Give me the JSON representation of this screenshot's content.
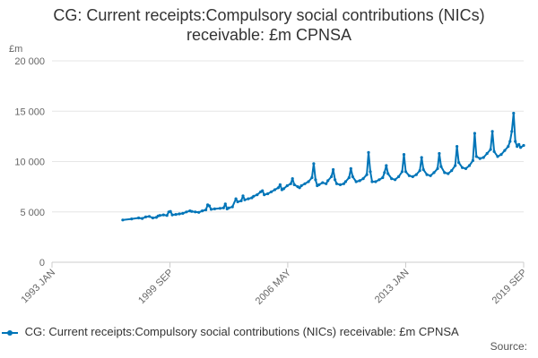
{
  "chart_data": {
    "type": "line",
    "title_line1": "CG: Current receipts:Compulsory social contributions (NICs)",
    "title_line2": "receivable: £m CPNSA",
    "ylabel": "£m",
    "ylim": [
      0,
      20000
    ],
    "yticks": [
      {
        "value": 0,
        "label": "0"
      },
      {
        "value": 5000,
        "label": "5 000"
      },
      {
        "value": 10000,
        "label": "10 000"
      },
      {
        "value": 15000,
        "label": "15 000"
      },
      {
        "value": 20000,
        "label": "20 000"
      }
    ],
    "xlim": [
      1993.0,
      2019.67
    ],
    "xticks": [
      {
        "value": 1993.0,
        "label": "1993 JAN"
      },
      {
        "value": 1999.67,
        "label": "1999 SEP"
      },
      {
        "value": 2006.33,
        "label": "2006 MAY"
      },
      {
        "value": 2013.0,
        "label": "2013 JAN"
      },
      {
        "value": 2019.67,
        "label": "2019 SEP"
      }
    ],
    "series": [
      {
        "name": "CG: Current receipts:Compulsory social contributions (NICs) receivable: £m CPNSA",
        "color": "#0075b8",
        "points": [
          [
            1997.0,
            4200
          ],
          [
            1997.5,
            4300
          ],
          [
            1997.9,
            4400
          ],
          [
            1998.1,
            4350
          ],
          [
            1998.3,
            4500
          ],
          [
            1998.5,
            4550
          ],
          [
            1998.7,
            4400
          ],
          [
            1998.9,
            4450
          ],
          [
            1999.0,
            4600
          ],
          [
            1999.1,
            4650
          ],
          [
            1999.3,
            4700
          ],
          [
            1999.5,
            4650
          ],
          [
            1999.6,
            5000
          ],
          [
            1999.7,
            5050
          ],
          [
            1999.8,
            4700
          ],
          [
            2000.0,
            4750
          ],
          [
            2000.2,
            4800
          ],
          [
            2000.4,
            4850
          ],
          [
            2000.6,
            5000
          ],
          [
            2000.8,
            5100
          ],
          [
            2000.9,
            5050
          ],
          [
            2001.1,
            5000
          ],
          [
            2001.3,
            4950
          ],
          [
            2001.5,
            5100
          ],
          [
            2001.7,
            5200
          ],
          [
            2001.8,
            5700
          ],
          [
            2001.9,
            5600
          ],
          [
            2002.0,
            5250
          ],
          [
            2002.2,
            5300
          ],
          [
            2002.5,
            5350
          ],
          [
            2002.7,
            5400
          ],
          [
            2002.8,
            5800
          ],
          [
            2002.9,
            5300
          ],
          [
            2003.0,
            5400
          ],
          [
            2003.2,
            5500
          ],
          [
            2003.4,
            6300
          ],
          [
            2003.5,
            6000
          ],
          [
            2003.7,
            6100
          ],
          [
            2003.8,
            6600
          ],
          [
            2003.9,
            6200
          ],
          [
            2004.1,
            6300
          ],
          [
            2004.3,
            6400
          ],
          [
            2004.4,
            6550
          ],
          [
            2004.6,
            6700
          ],
          [
            2004.8,
            7000
          ],
          [
            2004.9,
            7100
          ],
          [
            2005.0,
            6700
          ],
          [
            2005.2,
            6800
          ],
          [
            2005.4,
            7000
          ],
          [
            2005.6,
            7200
          ],
          [
            2005.8,
            7400
          ],
          [
            2005.9,
            7700
          ],
          [
            2006.0,
            7200
          ],
          [
            2006.1,
            7300
          ],
          [
            2006.3,
            7600
          ],
          [
            2006.5,
            7800
          ],
          [
            2006.6,
            8300
          ],
          [
            2006.7,
            7700
          ],
          [
            2006.9,
            7500
          ],
          [
            2007.0,
            7400
          ],
          [
            2007.1,
            7600
          ],
          [
            2007.3,
            7800
          ],
          [
            2007.5,
            8000
          ],
          [
            2007.7,
            8400
          ],
          [
            2007.8,
            9800
          ],
          [
            2007.9,
            8200
          ],
          [
            2008.0,
            7600
          ],
          [
            2008.1,
            7700
          ],
          [
            2008.3,
            7900
          ],
          [
            2008.5,
            7800
          ],
          [
            2008.6,
            8100
          ],
          [
            2008.8,
            8500
          ],
          [
            2008.9,
            9200
          ],
          [
            2009.0,
            8200
          ],
          [
            2009.1,
            7800
          ],
          [
            2009.3,
            7700
          ],
          [
            2009.5,
            7800
          ],
          [
            2009.6,
            8000
          ],
          [
            2009.8,
            8400
          ],
          [
            2009.9,
            9300
          ],
          [
            2010.0,
            8500
          ],
          [
            2010.2,
            8000
          ],
          [
            2010.4,
            8100
          ],
          [
            2010.6,
            8300
          ],
          [
            2010.8,
            8700
          ],
          [
            2010.9,
            10900
          ],
          [
            2011.0,
            9000
          ],
          [
            2011.1,
            8000
          ],
          [
            2011.3,
            8000
          ],
          [
            2011.5,
            8200
          ],
          [
            2011.7,
            8400
          ],
          [
            2011.8,
            8900
          ],
          [
            2011.9,
            9600
          ],
          [
            2012.0,
            8800
          ],
          [
            2012.2,
            8300
          ],
          [
            2012.4,
            8200
          ],
          [
            2012.6,
            8500
          ],
          [
            2012.8,
            9000
          ],
          [
            2012.9,
            10700
          ],
          [
            2013.0,
            9000
          ],
          [
            2013.2,
            8600
          ],
          [
            2013.4,
            8500
          ],
          [
            2013.6,
            8700
          ],
          [
            2013.8,
            9100
          ],
          [
            2013.9,
            10400
          ],
          [
            2014.0,
            9200
          ],
          [
            2014.2,
            8700
          ],
          [
            2014.4,
            8600
          ],
          [
            2014.6,
            8900
          ],
          [
            2014.8,
            9300
          ],
          [
            2014.9,
            10800
          ],
          [
            2015.0,
            9500
          ],
          [
            2015.2,
            8900
          ],
          [
            2015.4,
            8800
          ],
          [
            2015.6,
            9100
          ],
          [
            2015.8,
            9600
          ],
          [
            2015.9,
            11500
          ],
          [
            2016.0,
            9900
          ],
          [
            2016.2,
            9400
          ],
          [
            2016.4,
            9300
          ],
          [
            2016.6,
            9600
          ],
          [
            2016.8,
            10100
          ],
          [
            2016.9,
            12800
          ],
          [
            2017.0,
            10500
          ],
          [
            2017.2,
            10300
          ],
          [
            2017.4,
            10400
          ],
          [
            2017.6,
            10800
          ],
          [
            2017.8,
            11200
          ],
          [
            2017.9,
            13000
          ],
          [
            2018.0,
            11000
          ],
          [
            2018.2,
            10500
          ],
          [
            2018.4,
            10700
          ],
          [
            2018.6,
            11100
          ],
          [
            2018.8,
            11500
          ],
          [
            2018.9,
            12000
          ],
          [
            2019.0,
            13000
          ],
          [
            2019.1,
            14800
          ],
          [
            2019.2,
            12000
          ],
          [
            2019.3,
            11500
          ],
          [
            2019.4,
            11700
          ],
          [
            2019.5,
            11400
          ],
          [
            2019.67,
            11600
          ]
        ]
      }
    ],
    "legend_label": "CG: Current receipts:Compulsory social contributions (NICs) receivable: £m CPNSA",
    "source_label": "Source:",
    "grid": true
  }
}
